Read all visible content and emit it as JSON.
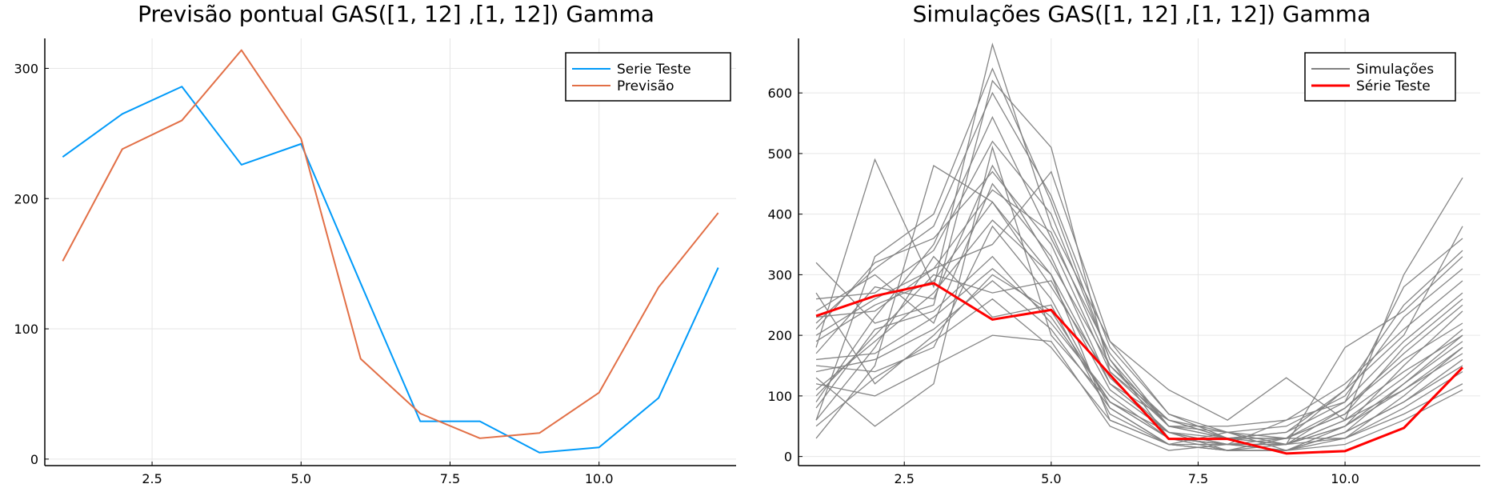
{
  "chart_data": [
    {
      "type": "line",
      "title": "Previsão pontual GAS([1, 12] ,[1, 12]) Gamma",
      "xlabel": "",
      "ylabel": "",
      "xlim": [
        0.7,
        12.3
      ],
      "ylim": [
        -5,
        323
      ],
      "xticks": [
        2.5,
        5.0,
        7.5,
        10.0
      ],
      "xtick_labels": [
        "2.5",
        "5.0",
        "7.5",
        "10.0"
      ],
      "yticks": [
        0,
        100,
        200,
        300
      ],
      "ytick_labels": [
        "0",
        "100",
        "200",
        "300"
      ],
      "grid": true,
      "legend_position": "top-right",
      "x": [
        1,
        2,
        3,
        4,
        5,
        6,
        7,
        8,
        9,
        10,
        11,
        12
      ],
      "series": [
        {
          "name": "Serie Teste",
          "color": "#009af9",
          "width": 2,
          "values": [
            232,
            265,
            286,
            226,
            242,
            135,
            29,
            29,
            5,
            9,
            47,
            147
          ]
        },
        {
          "name": "Previsão",
          "color": "#e26f46",
          "width": 2,
          "values": [
            152,
            238,
            260,
            314,
            246,
            77,
            35,
            16,
            20,
            51,
            132,
            189
          ]
        }
      ]
    },
    {
      "type": "line",
      "title": "Simulações GAS([1, 12] ,[1, 12]) Gamma",
      "xlabel": "",
      "ylabel": "",
      "xlim": [
        0.7,
        12.3
      ],
      "ylim": [
        -15,
        690
      ],
      "xticks": [
        2.5,
        5.0,
        7.5,
        10.0
      ],
      "xtick_labels": [
        "2.5",
        "5.0",
        "7.5",
        "10.0"
      ],
      "yticks": [
        0,
        100,
        200,
        300,
        400,
        500,
        600
      ],
      "ytick_labels": [
        "0",
        "100",
        "200",
        "300",
        "400",
        "500",
        "600"
      ],
      "grid": true,
      "legend_position": "top-right",
      "x": [
        1,
        2,
        3,
        4,
        5,
        6,
        7,
        8,
        9,
        10,
        11,
        12
      ],
      "legend": [
        {
          "name": "Simulações",
          "color": "#808080",
          "width": 2
        },
        {
          "name": "Série Teste",
          "color": "#ff0000",
          "width": 3
        }
      ],
      "simulation_color": "#808080",
      "simulations": [
        [
          180,
          490,
          280,
          680,
          380,
          190,
          110,
          60,
          130,
          60,
          300,
          460
        ],
        [
          320,
          220,
          250,
          620,
          510,
          140,
          50,
          40,
          20,
          180,
          240,
          330
        ],
        [
          60,
          330,
          400,
          640,
          420,
          160,
          30,
          20,
          60,
          90,
          280,
          360
        ],
        [
          30,
          150,
          480,
          420,
          300,
          60,
          20,
          40,
          10,
          40,
          120,
          200
        ],
        [
          130,
          50,
          120,
          510,
          200,
          90,
          40,
          10,
          30,
          70,
          180,
          260
        ],
        [
          200,
          260,
          310,
          350,
          470,
          190,
          70,
          30,
          40,
          110,
          200,
          380
        ],
        [
          100,
          200,
          300,
          270,
          290,
          110,
          40,
          20,
          10,
          50,
          150,
          240
        ],
        [
          240,
          300,
          220,
          450,
          330,
          120,
          60,
          30,
          20,
          60,
          110,
          170
        ],
        [
          150,
          140,
          180,
          380,
          260,
          80,
          20,
          20,
          30,
          30,
          70,
          120
        ],
        [
          90,
          230,
          350,
          560,
          360,
          170,
          50,
          50,
          60,
          120,
          210,
          290
        ],
        [
          270,
          120,
          200,
          300,
          240,
          90,
          30,
          10,
          10,
          40,
          90,
          150
        ],
        [
          170,
          280,
          260,
          480,
          320,
          150,
          60,
          30,
          20,
          80,
          160,
          220
        ],
        [
          60,
          180,
          330,
          230,
          250,
          70,
          20,
          10,
          20,
          30,
          100,
          180
        ],
        [
          220,
          310,
          380,
          600,
          430,
          180,
          70,
          40,
          50,
          100,
          230,
          310
        ],
        [
          120,
          100,
          150,
          200,
          190,
          50,
          10,
          20,
          10,
          20,
          60,
          110
        ],
        [
          190,
          250,
          290,
          420,
          280,
          130,
          40,
          30,
          30,
          70,
          140,
          200
        ],
        [
          80,
          210,
          240,
          330,
          220,
          100,
          30,
          20,
          20,
          50,
          120,
          190
        ],
        [
          260,
          270,
          340,
          520,
          400,
          160,
          50,
          30,
          40,
          90,
          190,
          270
        ],
        [
          140,
          160,
          210,
          290,
          210,
          80,
          20,
          10,
          10,
          30,
          80,
          140
        ],
        [
          210,
          320,
          360,
          470,
          350,
          140,
          60,
          40,
          30,
          110,
          250,
          340
        ],
        [
          110,
          190,
          270,
          390,
          300,
          120,
          40,
          20,
          20,
          60,
          130,
          210
        ],
        [
          50,
          130,
          190,
          260,
          180,
          60,
          20,
          10,
          10,
          40,
          90,
          160
        ],
        [
          230,
          240,
          310,
          440,
          370,
          150,
          50,
          30,
          30,
          80,
          170,
          250
        ],
        [
          160,
          170,
          230,
          310,
          230,
          90,
          30,
          20,
          20,
          50,
          110,
          180
        ]
      ],
      "series": [
        {
          "name": "Série Teste",
          "color": "#ff0000",
          "width": 3,
          "values": [
            232,
            265,
            286,
            226,
            242,
            135,
            29,
            29,
            5,
            9,
            47,
            147
          ]
        }
      ]
    }
  ]
}
